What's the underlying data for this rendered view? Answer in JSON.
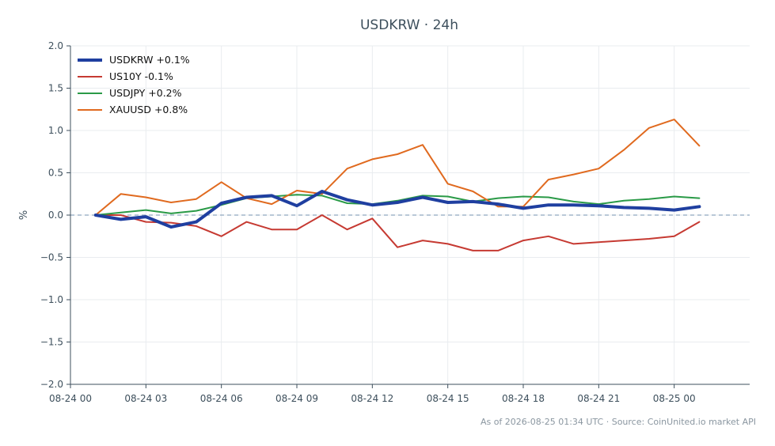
{
  "chart_data": {
    "type": "line",
    "title": "USDKRW · 24h",
    "ylabel": "%",
    "xlabel": "",
    "ylim": [
      -2.0,
      2.0
    ],
    "xlim": [
      "08-24 00:00",
      "08-25 03:00"
    ],
    "y_ticks": [
      "2.0",
      "1.5",
      "1.0",
      "0.5",
      "0.0",
      "−0.5",
      "−1.0",
      "−1.5",
      "−2.0"
    ],
    "x_ticks": [
      "08-24 00",
      "08-24 03",
      "08-24 06",
      "08-24 09",
      "08-24 12",
      "08-24 15",
      "08-24 18",
      "08-24 21",
      "08-25 00"
    ],
    "grid": true,
    "zero_line": true,
    "legend_position": "top-left",
    "x": [
      "08-24 01:00",
      "08-24 02:00",
      "08-24 03:00",
      "08-24 04:00",
      "08-24 05:00",
      "08-24 06:00",
      "08-24 07:00",
      "08-24 08:00",
      "08-24 09:00",
      "08-24 10:00",
      "08-24 11:00",
      "08-24 12:00",
      "08-24 13:00",
      "08-24 14:00",
      "08-24 15:00",
      "08-24 16:00",
      "08-24 17:00",
      "08-24 18:00",
      "08-24 19:00",
      "08-24 20:00",
      "08-24 21:00",
      "08-24 22:00",
      "08-24 23:00",
      "08-25 00:00",
      "08-25 01:00"
    ],
    "series": [
      {
        "name": "USDKRW +0.1%",
        "color": "#1f3fa0",
        "width": 4,
        "values": [
          0.0,
          -0.05,
          -0.02,
          -0.14,
          -0.08,
          0.14,
          0.21,
          0.23,
          0.11,
          0.28,
          0.18,
          0.12,
          0.15,
          0.21,
          0.15,
          0.16,
          0.13,
          0.08,
          0.12,
          0.12,
          0.11,
          0.09,
          0.08,
          0.06,
          0.1
        ]
      },
      {
        "name": "US10Y -0.1%",
        "color": "#c63a32",
        "width": 2,
        "values": [
          0.0,
          0.0,
          -0.08,
          -0.09,
          -0.13,
          -0.25,
          -0.08,
          -0.17,
          -0.17,
          0.0,
          -0.17,
          -0.04,
          -0.38,
          -0.3,
          -0.34,
          -0.42,
          -0.42,
          -0.3,
          -0.25,
          -0.34,
          -0.32,
          -0.3,
          -0.28,
          -0.25,
          -0.08
        ]
      },
      {
        "name": "USDJPY +0.2%",
        "color": "#2a9a47",
        "width": 2,
        "values": [
          0.0,
          0.03,
          0.06,
          0.02,
          0.05,
          0.12,
          0.2,
          0.22,
          0.24,
          0.23,
          0.14,
          0.13,
          0.17,
          0.23,
          0.22,
          0.16,
          0.2,
          0.22,
          0.21,
          0.16,
          0.13,
          0.17,
          0.19,
          0.22,
          0.2
        ]
      },
      {
        "name": "XAUUSD +0.8%",
        "color": "#e06a1f",
        "width": 2,
        "values": [
          0.0,
          0.25,
          0.21,
          0.15,
          0.19,
          0.39,
          0.2,
          0.13,
          0.29,
          0.25,
          0.55,
          0.66,
          0.72,
          0.83,
          0.37,
          0.28,
          0.1,
          0.1,
          0.42,
          0.48,
          0.55,
          0.77,
          1.03,
          1.13,
          0.82
        ]
      }
    ],
    "footer": "As of 2026-08-25 01:34 UTC · Source: CoinUnited.io market API"
  }
}
